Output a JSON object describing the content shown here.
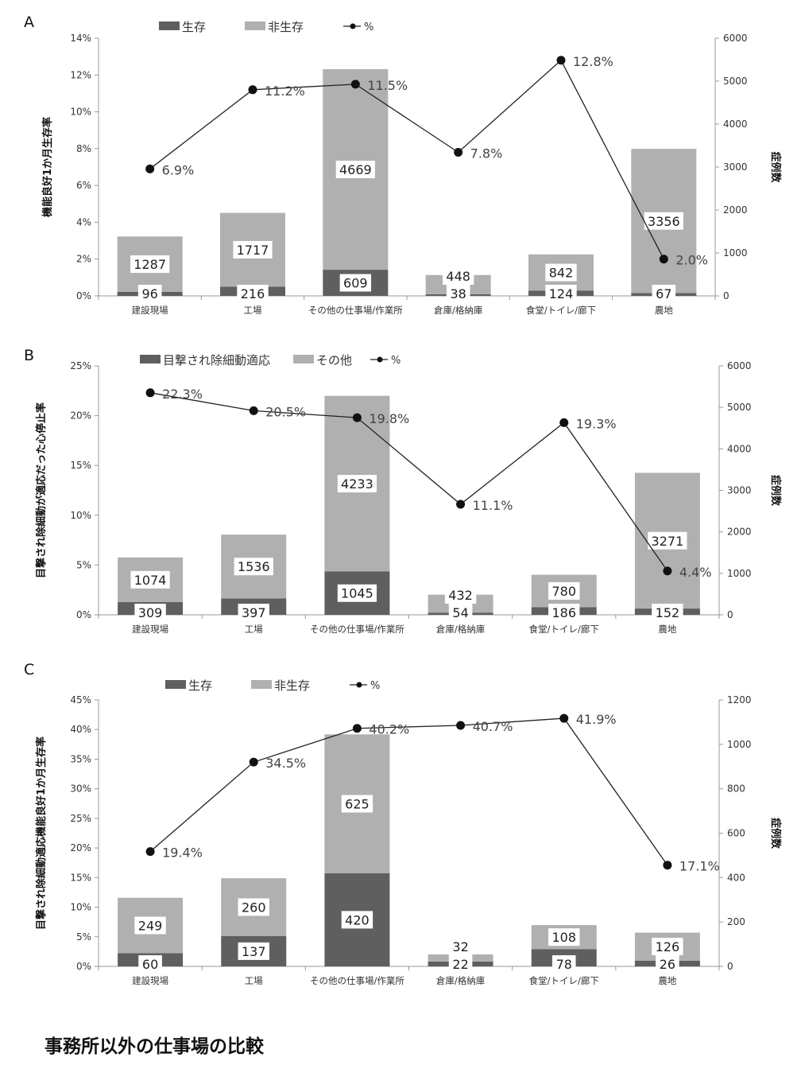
{
  "page_title": "事務所以外の仕事場の比較",
  "chart_data": [
    {
      "panel": "A",
      "type": "bar",
      "stacked": true,
      "categories": [
        "建設現場",
        "工場",
        "その他の仕事場/作業所",
        "倉庫/格納庫",
        "食堂/トイレ/廊下",
        "農地"
      ],
      "series": [
        {
          "name": "生存",
          "values": [
            96,
            216,
            609,
            38,
            124,
            67
          ],
          "color": "#5f5f5f"
        },
        {
          "name": "非生存",
          "values": [
            1287,
            1717,
            4669,
            448,
            842,
            3356
          ],
          "color": "#b0b0b0"
        }
      ],
      "line": {
        "name": "%",
        "values": [
          6.9,
          11.2,
          11.5,
          7.8,
          12.8,
          2.0
        ],
        "labels": [
          "6.9%",
          "11.2%",
          "11.5%",
          "7.8%",
          "12.8%",
          "2.0%"
        ]
      },
      "ylabel_left": "機能良好1か月生存率",
      "ylabel_right": "症例数",
      "yleft": {
        "min": 0,
        "max": 14,
        "ticks": [
          "0%",
          "2%",
          "4%",
          "6%",
          "8%",
          "10%",
          "12%",
          "14%"
        ]
      },
      "yright": {
        "min": 0,
        "max": 6000,
        "ticks": [
          "0",
          "1000",
          "2000",
          "3000",
          "4000",
          "5000",
          "6000"
        ]
      },
      "legend": [
        "生存",
        "非生存",
        "%"
      ]
    },
    {
      "panel": "B",
      "type": "bar",
      "stacked": true,
      "categories": [
        "建設現場",
        "工場",
        "その他の仕事場/作業所",
        "倉庫/格納庫",
        "食堂/トイレ/廊下",
        "農地"
      ],
      "series": [
        {
          "name": "目撃され除細動適応",
          "values": [
            309,
            397,
            1045,
            54,
            186,
            152
          ],
          "color": "#5f5f5f"
        },
        {
          "name": "その他",
          "values": [
            1074,
            1536,
            4233,
            432,
            780,
            3271
          ],
          "color": "#b0b0b0"
        }
      ],
      "line": {
        "name": "%",
        "values": [
          22.3,
          20.5,
          19.8,
          11.1,
          19.3,
          4.4
        ],
        "labels": [
          "22.3%",
          "20.5%",
          "19.8%",
          "11.1%",
          "19.3%",
          "4.4%"
        ]
      },
      "ylabel_left": "目撃され除細動が適応だった心停止率",
      "ylabel_right": "症例数",
      "yleft": {
        "min": 0,
        "max": 25,
        "ticks": [
          "0%",
          "5%",
          "10%",
          "15%",
          "20%",
          "25%"
        ]
      },
      "yright": {
        "min": 0,
        "max": 6000,
        "ticks": [
          "0",
          "1000",
          "2000",
          "3000",
          "4000",
          "5000",
          "6000"
        ]
      },
      "legend": [
        "目撃され除細動適応",
        "その他",
        "%"
      ]
    },
    {
      "panel": "C",
      "type": "bar",
      "stacked": true,
      "categories": [
        "建設現場",
        "工場",
        "その他の仕事場/作業所",
        "倉庫/格納庫",
        "食堂/トイレ/廊下",
        "農地"
      ],
      "series": [
        {
          "name": "生存",
          "values": [
            60,
            137,
            420,
            22,
            78,
            26
          ],
          "color": "#5f5f5f"
        },
        {
          "name": "非生存",
          "values": [
            249,
            260,
            625,
            32,
            108,
            126
          ],
          "color": "#b0b0b0"
        }
      ],
      "line": {
        "name": "%",
        "values": [
          19.4,
          34.5,
          40.2,
          40.7,
          41.9,
          17.1
        ],
        "labels": [
          "19.4%",
          "34.5%",
          "40.2%",
          "40.7%",
          "41.9%",
          "17.1%"
        ]
      },
      "ylabel_left": "目撃され除細動適応機能良好1か月生存率",
      "ylabel_right": "症例数",
      "yleft": {
        "min": 0,
        "max": 45,
        "ticks": [
          "0%",
          "5%",
          "10%",
          "15%",
          "20%",
          "25%",
          "30%",
          "35%",
          "40%",
          "45%"
        ]
      },
      "yright": {
        "min": 0,
        "max": 1200,
        "ticks": [
          "0",
          "200",
          "400",
          "600",
          "800",
          "1000",
          "1200"
        ]
      },
      "legend": [
        "生存",
        "非生存",
        "%"
      ]
    }
  ]
}
